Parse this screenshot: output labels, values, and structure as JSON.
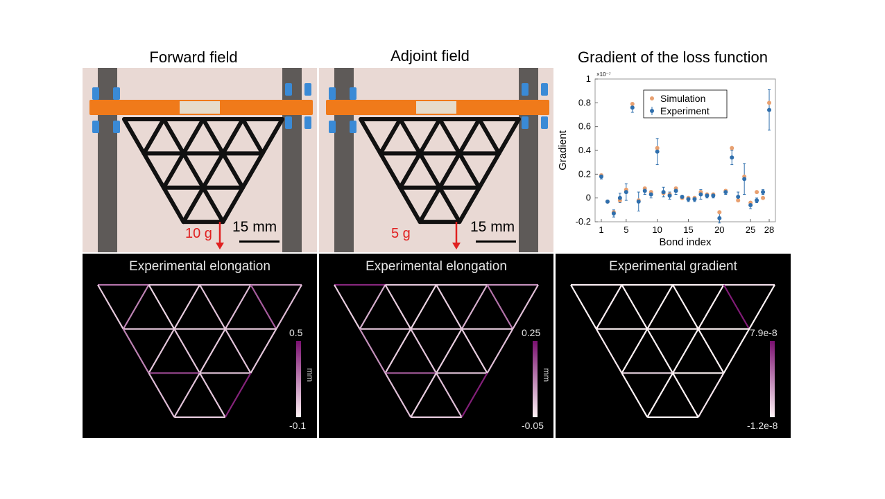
{
  "titles": {
    "forward": "Forward field",
    "adjoint": "Adjoint field",
    "gradient": "Gradient of the loss function"
  },
  "photo_forward": {
    "load": "10 g",
    "scale": "15 mm"
  },
  "photo_adjoint": {
    "load": "5 g",
    "scale": "15 mm"
  },
  "panel_forward": {
    "title": "Experimental elongation",
    "cb_max": "0.5",
    "cb_min": "-0.1",
    "cb_unit": "mm",
    "bond_values": [
      0.24,
      0.05,
      0.05,
      0.15,
      0.01,
      0.2,
      -0.02,
      0.0,
      0.03,
      0.05,
      0.3,
      0.05,
      0.02,
      0.0,
      0.01,
      0.2,
      0.02,
      0.02,
      0.01,
      0.03,
      0.02,
      0.35,
      0.02,
      0.05,
      0.03,
      0.02,
      0.45,
      0.0
    ]
  },
  "panel_adjoint": {
    "title": "Experimental elongation",
    "cb_max": "0.25",
    "cb_min": "-0.05",
    "cb_unit": "mm",
    "bond_values": [
      0.22,
      0.01,
      0.01,
      0.08,
      0.0,
      0.04,
      0.0,
      -0.01,
      0.0,
      0.04,
      0.12,
      0.02,
      0.01,
      0.0,
      0.0,
      0.08,
      0.0,
      0.01,
      0.0,
      0.0,
      0.02,
      0.15,
      0.01,
      0.02,
      0.0,
      0.02,
      0.23,
      0.0
    ]
  },
  "panel_gradient": {
    "title": "Experimental gradient",
    "cb_max": "7.9e-8",
    "cb_min": "-1.2e-8",
    "bond_values": [
      0.02,
      0.0,
      0.0,
      0.08,
      0.0,
      0.02,
      0.0,
      0.0,
      0.0,
      0.01,
      0.76,
      0.0,
      0.0,
      0.0,
      0.0,
      0.04,
      0.0,
      0.0,
      0.0,
      0.0,
      0.0,
      0.1,
      0.0,
      0.0,
      0.0,
      0.0,
      0.05,
      0.0
    ]
  },
  "colors": {
    "simulation": "#e8a070",
    "experiment": "#2f6fad",
    "colormap_low": "#fff4f6",
    "colormap_high": "#7a1070",
    "load_arrow": "#e02020"
  },
  "chart_data": {
    "type": "scatter",
    "title": "",
    "xlabel": "Bond index",
    "ylabel": "Gradient",
    "exponent_label": "×10⁻⁷",
    "xlim": [
      0,
      29
    ],
    "ylim": [
      -0.2,
      1
    ],
    "xticks": [
      1,
      5,
      10,
      15,
      20,
      25,
      28
    ],
    "yticks": [
      -0.2,
      0,
      0.2,
      0.4,
      0.6,
      0.8,
      1
    ],
    "ytick_labels": [
      "-0.2",
      "0",
      "0.2",
      "0.4",
      "0.6",
      "0.8",
      "1"
    ],
    "legend": "top",
    "series": [
      {
        "name": "Simulation",
        "x": [
          1,
          2,
          3,
          4,
          5,
          6,
          7,
          8,
          9,
          10,
          11,
          12,
          13,
          14,
          15,
          16,
          17,
          18,
          19,
          20,
          21,
          22,
          23,
          24,
          25,
          26,
          27,
          28
        ],
        "values": [
          0.19,
          -0.03,
          -0.12,
          -0.02,
          0.07,
          0.79,
          -0.02,
          0.08,
          0.05,
          0.42,
          0.04,
          0.03,
          0.08,
          0.0,
          0.0,
          0.0,
          0.05,
          0.03,
          0.03,
          -0.12,
          0.06,
          0.42,
          -0.02,
          0.18,
          -0.04,
          0.05,
          0.0,
          0.8
        ]
      },
      {
        "name": "Experiment",
        "x": [
          1,
          2,
          3,
          4,
          5,
          6,
          7,
          8,
          9,
          10,
          11,
          12,
          13,
          14,
          15,
          16,
          17,
          18,
          19,
          20,
          21,
          22,
          23,
          24,
          25,
          26,
          27,
          28
        ],
        "values": [
          0.18,
          -0.03,
          -0.13,
          0.0,
          0.05,
          0.76,
          -0.03,
          0.06,
          0.03,
          0.39,
          0.05,
          0.02,
          0.06,
          0.01,
          -0.01,
          -0.01,
          0.03,
          0.02,
          0.02,
          -0.17,
          0.05,
          0.34,
          0.01,
          0.16,
          -0.06,
          -0.02,
          0.05,
          0.74
        ],
        "errors": [
          0.02,
          0.01,
          0.03,
          0.04,
          0.07,
          0.04,
          0.08,
          0.03,
          0.03,
          0.11,
          0.04,
          0.03,
          0.03,
          0.01,
          0.02,
          0.02,
          0.04,
          0.02,
          0.02,
          0.04,
          0.02,
          0.06,
          0.04,
          0.13,
          0.03,
          0.02,
          0.02,
          0.17
        ]
      }
    ]
  }
}
